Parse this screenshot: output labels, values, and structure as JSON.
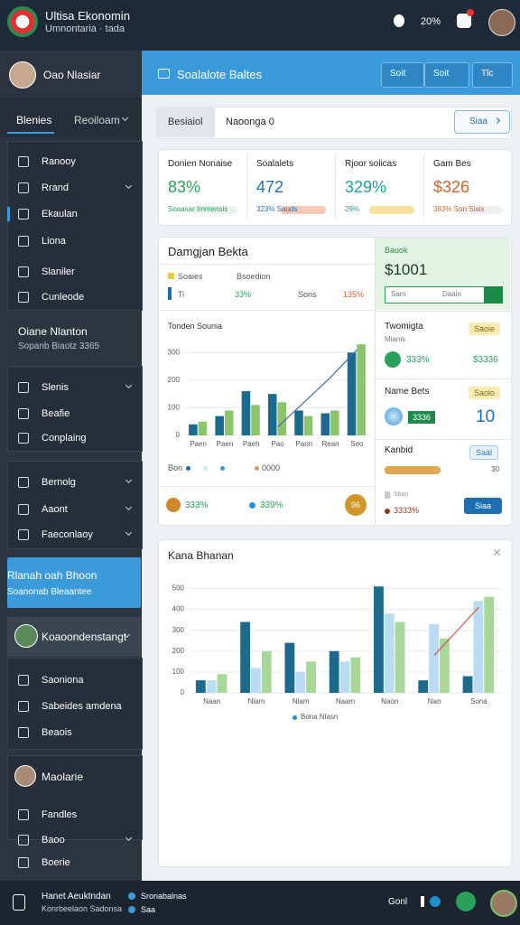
{
  "header": {
    "title": "Ultisa Ekonomin",
    "subtitle": "Umnontaria · tada",
    "status": "20%"
  },
  "sidebar": {
    "user": "Oao Nlasiar",
    "tabs": [
      "Blenies",
      "Reoiloam"
    ],
    "group1": [
      "Ranooy",
      "Rrand",
      "Ekaulan",
      "Liona",
      "Slaniler",
      "Cunleode"
    ],
    "section": {
      "title": "Oiane Nlanton",
      "subtitle": "Sopanb Biaotz 3365"
    },
    "group2": [
      "Slenis",
      "Beafie",
      "Conplaing"
    ],
    "group3": [
      "Bernolg",
      "Aaont",
      "Faeconlaoy"
    ],
    "highlight": {
      "title": "Rlanah oah Bhoon",
      "subtitle": "Soanonab Bleaantee"
    },
    "profile": "Koaoondenstangt",
    "group4": [
      "Saoniona",
      "Sabeides amdena",
      "Beaois"
    ],
    "profile2": "Maolarie",
    "group5": [
      "Fandles",
      "Baoo",
      "Boerie"
    ]
  },
  "main": {
    "title": "Soalalote Baltes",
    "buttons": [
      "Soit",
      "Soit",
      "Tlc"
    ]
  },
  "filter": {
    "tab": "Besiaiol",
    "field": "Naoonga 0",
    "button": "Siaa"
  },
  "kpis": [
    {
      "label": "Donien Nonaise",
      "value": "83%",
      "note": "Soaasar Immensis"
    },
    {
      "label": "Soalalets",
      "value": "472",
      "note": "323% Sauds"
    },
    {
      "label": "Rjoor solicas",
      "value": "329%",
      "note": "29%"
    },
    {
      "label": "Gam Bes",
      "value": "$326",
      "note": "383% Son Sials"
    }
  ],
  "panel": {
    "title": "Damgjan Bekta",
    "row": [
      "Ti",
      "33%",
      "Sons",
      "135%"
    ],
    "legend": [
      "Bon",
      "0000"
    ],
    "stats": [
      "333%",
      "339%",
      "96"
    ]
  },
  "cards": {
    "sales": {
      "label": "Bauok",
      "value": "$1001",
      "inputs": [
        "Sam",
        "Daain"
      ]
    },
    "card2": {
      "title": "Twomigta",
      "sub": "Mianis",
      "badge": "Saoie",
      "stats": [
        "333%",
        "$3336"
      ]
    },
    "card3": {
      "title": "Name Bets",
      "badge": "Saolo",
      "tag": "3336",
      "value": "10"
    },
    "card4": {
      "title": "Kanbid",
      "badge": "Saal",
      "value": "30"
    },
    "card5": {
      "label": "Sbao",
      "stat": "3333%",
      "button": "Siaa"
    }
  },
  "footer": {
    "name": "Hanet Aeuktndan",
    "sub": "Konrbeelaon Sadonsa",
    "links": [
      "Sronabalnas",
      "Saa"
    ],
    "right": "Gonl"
  },
  "chart_data": [
    {
      "type": "bar",
      "title": "Tonden Sounia",
      "categories": [
        "Paen",
        "Paen",
        "Paeh",
        "Pao",
        "Paon",
        "Rean",
        "Seo"
      ],
      "series": [
        {
          "name": "Soaies",
          "color": "#1c6a8c",
          "values": [
            40,
            70,
            160,
            150,
            90,
            80,
            300
          ]
        },
        {
          "name": "Bsoedion",
          "color": "#8cc46e",
          "values": [
            50,
            90,
            110,
            120,
            70,
            90,
            330
          ]
        }
      ],
      "trend": [
        null,
        null,
        null,
        30,
        120,
        210,
        310
      ],
      "trend_color": "#3a6fb0",
      "ylim": [
        0,
        350
      ],
      "yticks": [
        0,
        100,
        200,
        300
      ],
      "grid": true
    },
    {
      "type": "bar",
      "title": "Kana Bhanan",
      "categories": [
        "Naan",
        "Nlam",
        "Nlam",
        "Naam",
        "Naon",
        "Nan",
        "Sona"
      ],
      "series": [
        {
          "name": "Bona Nlasn",
          "color": "#1c6a8c",
          "values": [
            60,
            340,
            240,
            200,
            510,
            60,
            80
          ]
        },
        {
          "color": "#b9dcf2",
          "values": [
            60,
            120,
            100,
            150,
            380,
            330,
            440
          ]
        },
        {
          "color": "#a8d79a",
          "values": [
            90,
            200,
            150,
            170,
            340,
            260,
            460
          ]
        }
      ],
      "trend": [
        null,
        null,
        null,
        null,
        null,
        180,
        410
      ],
      "trend_color": "#d9534f",
      "ylim": [
        0,
        550
      ],
      "yticks": [
        0,
        100,
        200,
        300,
        400,
        500
      ],
      "grid": true
    }
  ]
}
